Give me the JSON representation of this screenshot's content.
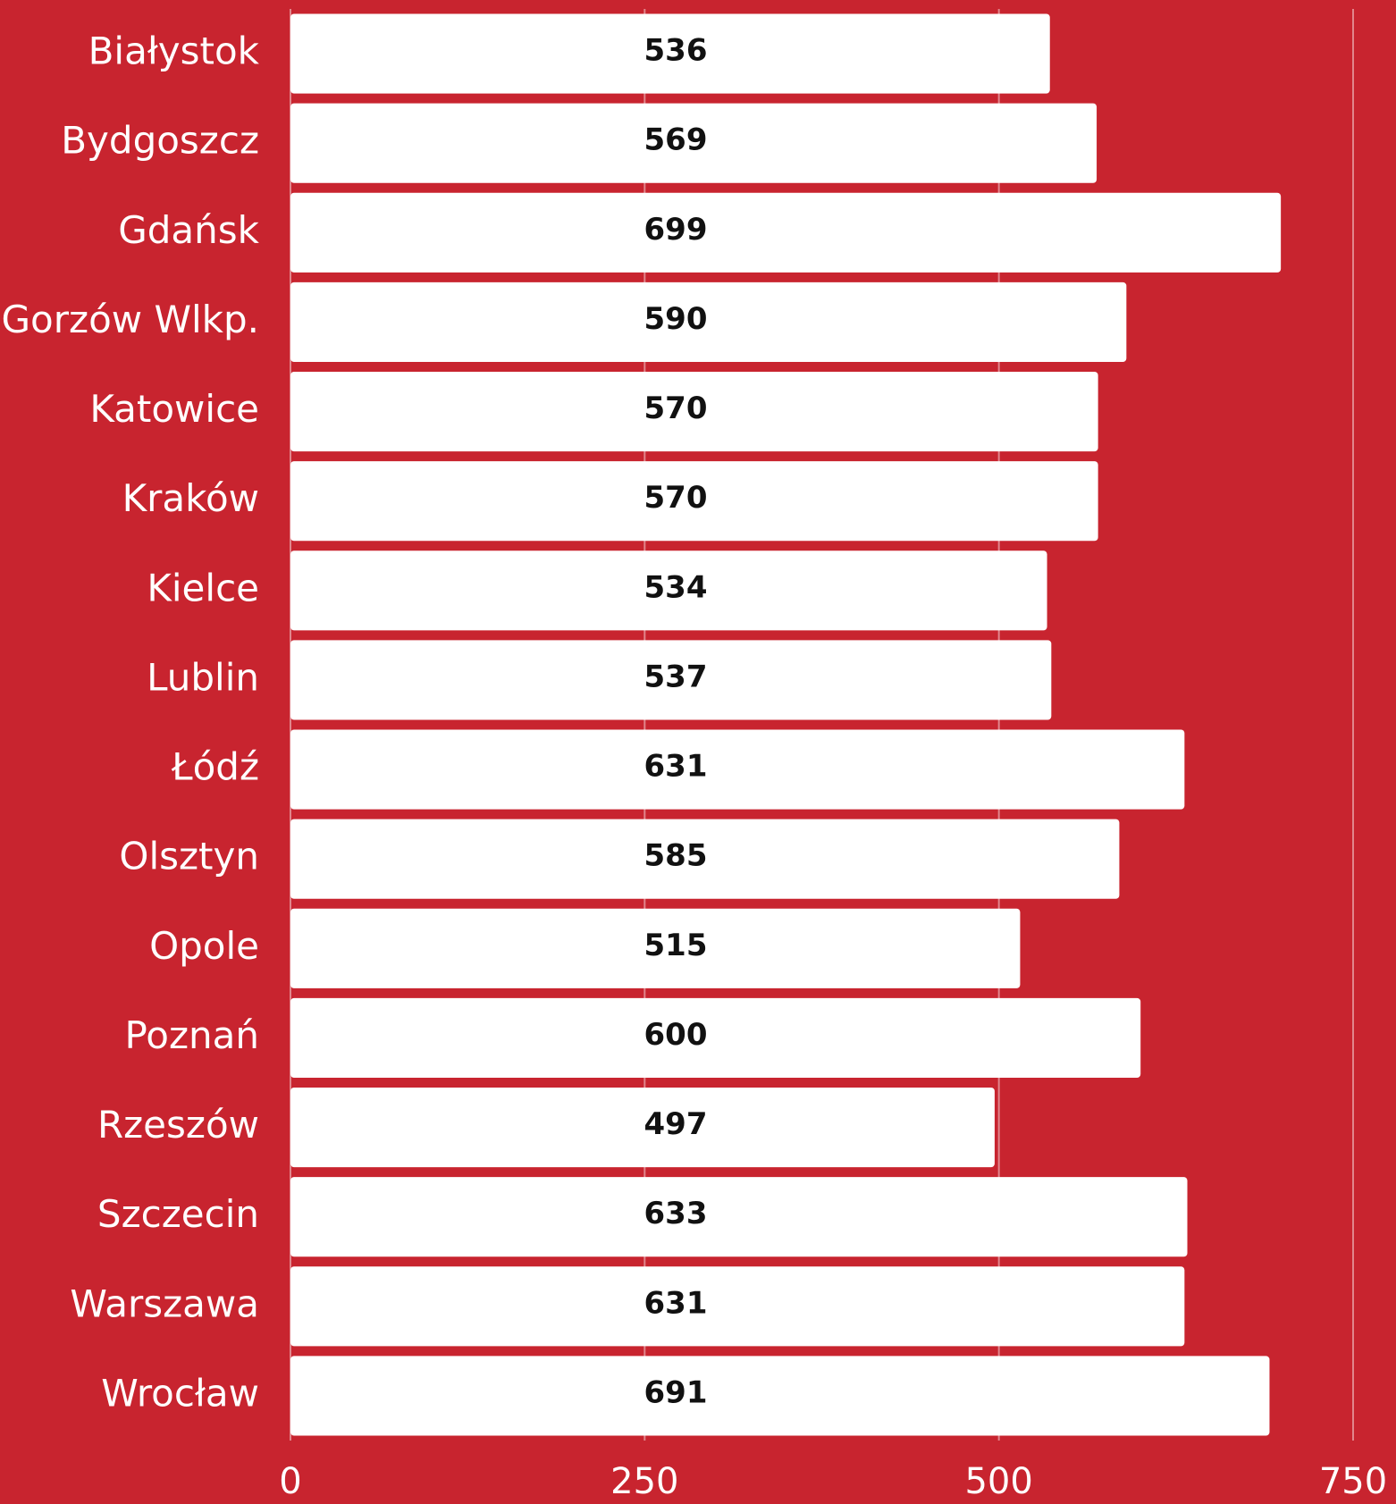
{
  "chart_data": {
    "type": "barh",
    "categories": [
      "Białystok",
      "Bydgoszcz",
      "Gdańsk",
      "Gorzów Wlkp.",
      "Katowice",
      "Kraków",
      "Kielce",
      "Lublin",
      "Łódź",
      "Olsztyn",
      "Opole",
      "Poznań",
      "Rzeszów",
      "Szczecin",
      "Warszawa",
      "Wrocław"
    ],
    "values": [
      536,
      569,
      699,
      590,
      570,
      570,
      534,
      537,
      631,
      585,
      515,
      600,
      497,
      633,
      631,
      691
    ],
    "color": "#ffffff",
    "background": "#c8242f",
    "xlim": [
      0,
      750
    ],
    "xticks": [
      0,
      250,
      500,
      750
    ],
    "grid": true
  }
}
